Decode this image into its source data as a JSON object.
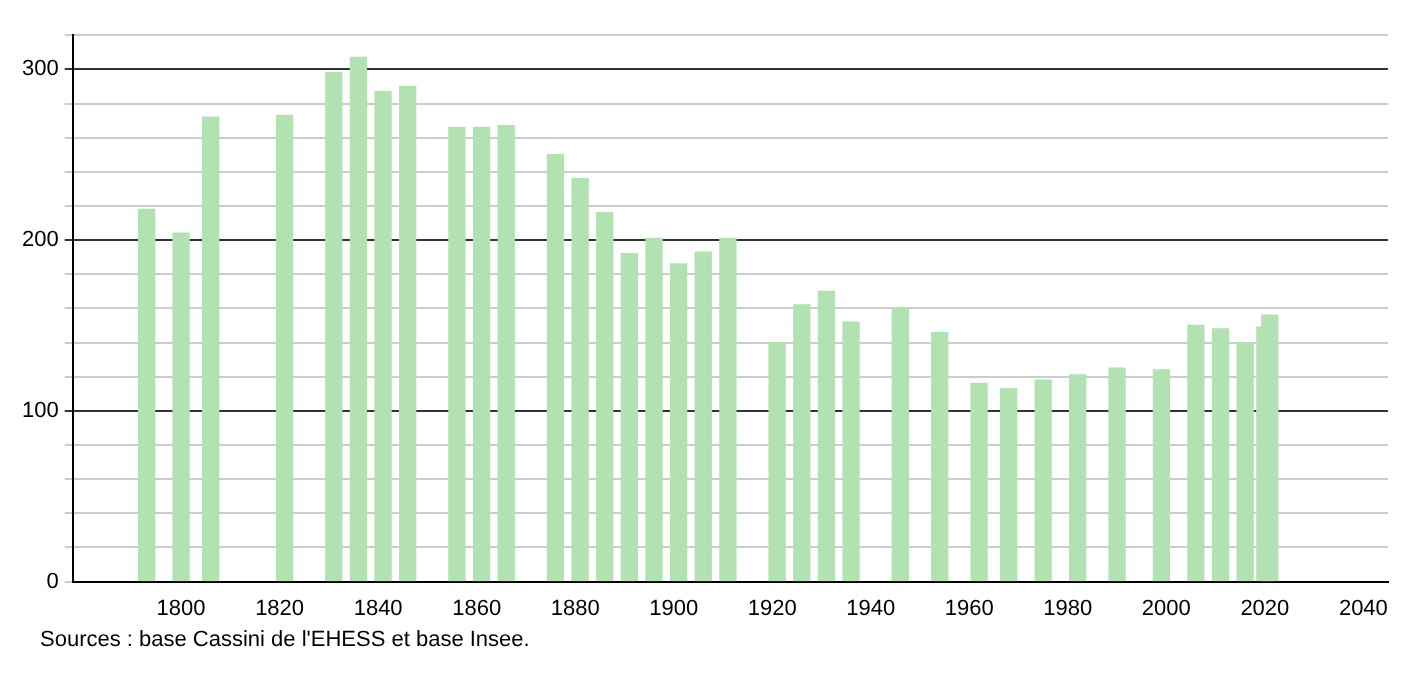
{
  "chart_data": {
    "type": "bar",
    "color": "#b2e2b2",
    "x": [
      1793,
      1800,
      1806,
      1821,
      1831,
      1836,
      1841,
      1846,
      1856,
      1861,
      1866,
      1876,
      1881,
      1886,
      1891,
      1896,
      1901,
      1906,
      1911,
      1921,
      1926,
      1931,
      1936,
      1946,
      1954,
      1962,
      1968,
      1975,
      1982,
      1990,
      1999,
      2006,
      2011,
      2016,
      2020,
      2021
    ],
    "values": [
      218,
      204,
      272,
      273,
      298,
      307,
      287,
      290,
      266,
      266,
      267,
      250,
      236,
      216,
      192,
      201,
      186,
      193,
      201,
      140,
      162,
      170,
      152,
      160,
      146,
      116,
      113,
      118,
      121,
      125,
      124,
      150,
      148,
      140,
      149,
      156
    ],
    "xlim": [
      1778,
      2045
    ],
    "xticks": [
      1800,
      1820,
      1840,
      1860,
      1880,
      1900,
      1920,
      1940,
      1960,
      1980,
      2000,
      2020,
      2040
    ],
    "ylim": [
      0,
      320
    ],
    "yticks": [
      0,
      {
        "value": 20,
        "label": null
      },
      {
        "value": 40,
        "label": null
      },
      {
        "value": 60,
        "label": null
      },
      {
        "value": 80,
        "label": null
      },
      100,
      {
        "value": 120,
        "label": null
      },
      {
        "value": 140,
        "label": null
      },
      {
        "value": 160,
        "label": null
      },
      {
        "value": 180,
        "label": null
      },
      200,
      {
        "value": 220,
        "label": null
      },
      {
        "value": 240,
        "label": null
      },
      {
        "value": 260,
        "label": null
      },
      {
        "value": 280,
        "label": null
      },
      300,
      {
        "value": 320,
        "label": null
      }
    ],
    "grid": "y",
    "annotations": [
      "Sources : base Cassini de l'EHESS et base Insee."
    ]
  }
}
